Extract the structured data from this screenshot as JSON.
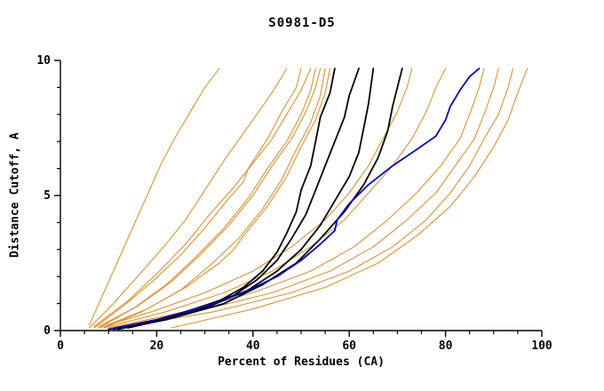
{
  "title": "S0981-D5",
  "chart_data": {
    "type": "line",
    "title": "S0981-D5",
    "xlabel": "Percent of Residues (CA)",
    "ylabel": "Distance Cutoff, A",
    "xlim": [
      0,
      100
    ],
    "ylim": [
      0,
      10
    ],
    "x_major_ticks": [
      0,
      20,
      40,
      60,
      80,
      100
    ],
    "x_minor_step": 5,
    "y_major_ticks": [
      0,
      5,
      10
    ],
    "y_minor_step": 1,
    "grid": false,
    "legend": "none",
    "colors": {
      "orange": "#e2912e",
      "black": "#000000",
      "blue": "#0000c8"
    },
    "line_widths": {
      "orange": 1.1,
      "black": 1.8,
      "blue": 1.8
    },
    "series": [
      {
        "name": "orange-01",
        "color": "orange",
        "points": [
          [
            6,
            0.2
          ],
          [
            9,
            1.4
          ],
          [
            12,
            2.6
          ],
          [
            15,
            3.8
          ],
          [
            18,
            5.0
          ],
          [
            21,
            6.2
          ],
          [
            24,
            7.2
          ],
          [
            27,
            8.1
          ],
          [
            30,
            9.0
          ],
          [
            33,
            9.7
          ]
        ]
      },
      {
        "name": "orange-02",
        "color": "orange",
        "points": [
          [
            6,
            0.1
          ],
          [
            11,
            1.0
          ],
          [
            16,
            2.0
          ],
          [
            21,
            3.0
          ],
          [
            26,
            4.1
          ],
          [
            30,
            5.2
          ],
          [
            34,
            6.3
          ],
          [
            38,
            7.3
          ],
          [
            42,
            8.3
          ],
          [
            45,
            9.1
          ],
          [
            47,
            9.7
          ]
        ]
      },
      {
        "name": "orange-03",
        "color": "orange",
        "points": [
          [
            7,
            0.1
          ],
          [
            13,
            0.9
          ],
          [
            19,
            1.8
          ],
          [
            25,
            2.8
          ],
          [
            30,
            3.8
          ],
          [
            35,
            4.9
          ],
          [
            38,
            5.5
          ],
          [
            39,
            6.0
          ],
          [
            43,
            7.1
          ],
          [
            46,
            8.1
          ],
          [
            49,
            9.0
          ],
          [
            50,
            9.7
          ]
        ]
      },
      {
        "name": "orange-04",
        "color": "orange",
        "points": [
          [
            7,
            0.15
          ],
          [
            14,
            1.1
          ],
          [
            20,
            2.1
          ],
          [
            26,
            3.2
          ],
          [
            31,
            4.3
          ],
          [
            36,
            5.3
          ],
          [
            40,
            6.2
          ],
          [
            44,
            7.1
          ],
          [
            47,
            8.0
          ],
          [
            50,
            8.9
          ],
          [
            52,
            9.7
          ]
        ]
      },
      {
        "name": "orange-05",
        "color": "orange",
        "points": [
          [
            8,
            0.1
          ],
          [
            15,
            0.8
          ],
          [
            22,
            1.7
          ],
          [
            28,
            2.7
          ],
          [
            34,
            3.8
          ],
          [
            39,
            4.9
          ],
          [
            43,
            6.0
          ],
          [
            47,
            7.0
          ],
          [
            50,
            8.0
          ],
          [
            52,
            8.9
          ],
          [
            53,
            9.7
          ]
        ]
      },
      {
        "name": "orange-06",
        "color": "orange",
        "points": [
          [
            8,
            0.15
          ],
          [
            16,
            0.9
          ],
          [
            23,
            1.8
          ],
          [
            29,
            2.8
          ],
          [
            35,
            3.9
          ],
          [
            40,
            5.0
          ],
          [
            44,
            6.1
          ],
          [
            48,
            7.1
          ],
          [
            51,
            8.1
          ],
          [
            53,
            9.0
          ],
          [
            54,
            9.7
          ]
        ]
      },
      {
        "name": "orange-07",
        "color": "orange",
        "points": [
          [
            9,
            0.1
          ],
          [
            17,
            0.7
          ],
          [
            25,
            1.5
          ],
          [
            31,
            2.4
          ],
          [
            37,
            3.4
          ],
          [
            42,
            4.5
          ],
          [
            46,
            5.6
          ],
          [
            49,
            6.7
          ],
          [
            52,
            7.7
          ],
          [
            54,
            8.7
          ],
          [
            55,
            9.7
          ]
        ]
      },
      {
        "name": "orange-08",
        "color": "orange",
        "points": [
          [
            9,
            0.15
          ],
          [
            18,
            0.8
          ],
          [
            26,
            1.6
          ],
          [
            33,
            2.5
          ],
          [
            36,
            3.0
          ],
          [
            38,
            3.5
          ],
          [
            43,
            4.6
          ],
          [
            47,
            5.7
          ],
          [
            50,
            6.8
          ],
          [
            53,
            7.8
          ],
          [
            55,
            8.8
          ],
          [
            56,
            9.7
          ]
        ]
      },
      {
        "name": "orange-09",
        "color": "orange",
        "points": [
          [
            8,
            0.1
          ],
          [
            19,
            0.7
          ],
          [
            30,
            1.4
          ],
          [
            40,
            2.2
          ],
          [
            48,
            3.1
          ],
          [
            55,
            4.1
          ],
          [
            60,
            5.1
          ],
          [
            64,
            6.1
          ],
          [
            67,
            7.1
          ],
          [
            70,
            8.1
          ],
          [
            72,
            9.0
          ],
          [
            73,
            9.7
          ]
        ]
      },
      {
        "name": "orange-10",
        "color": "orange",
        "points": [
          [
            9,
            0.1
          ],
          [
            22,
            0.7
          ],
          [
            34,
            1.4
          ],
          [
            44,
            2.2
          ],
          [
            52,
            3.1
          ],
          [
            59,
            4.1
          ],
          [
            64,
            5.1
          ],
          [
            69,
            6.1
          ],
          [
            73,
            7.1
          ],
          [
            76,
            8.1
          ],
          [
            78,
            9.0
          ],
          [
            80,
            9.7
          ]
        ]
      },
      {
        "name": "orange-11",
        "color": "orange",
        "points": [
          [
            10,
            0.1
          ],
          [
            26,
            0.7
          ],
          [
            40,
            1.4
          ],
          [
            52,
            2.2
          ],
          [
            61,
            3.1
          ],
          [
            68,
            4.1
          ],
          [
            74,
            5.1
          ],
          [
            79,
            6.1
          ],
          [
            83,
            7.1
          ],
          [
            85,
            8.0
          ],
          [
            87,
            9.0
          ],
          [
            88,
            9.7
          ]
        ]
      },
      {
        "name": "orange-12",
        "color": "orange",
        "points": [
          [
            11,
            0.1
          ],
          [
            28,
            0.7
          ],
          [
            44,
            1.4
          ],
          [
            56,
            2.2
          ],
          [
            65,
            3.1
          ],
          [
            72,
            4.1
          ],
          [
            78,
            5.1
          ],
          [
            82,
            6.1
          ],
          [
            86,
            7.1
          ],
          [
            88,
            8.0
          ],
          [
            90,
            9.0
          ],
          [
            91,
            9.7
          ]
        ]
      },
      {
        "name": "orange-13",
        "color": "orange",
        "points": [
          [
            12,
            0.1
          ],
          [
            32,
            0.7
          ],
          [
            48,
            1.4
          ],
          [
            60,
            2.2
          ],
          [
            69,
            3.1
          ],
          [
            76,
            4.1
          ],
          [
            81,
            5.1
          ],
          [
            85,
            6.1
          ],
          [
            88,
            7.1
          ],
          [
            91,
            8.0
          ],
          [
            93,
            9.0
          ],
          [
            94,
            9.7
          ]
        ]
      },
      {
        "name": "orange-14",
        "color": "orange",
        "points": [
          [
            23,
            0.1
          ],
          [
            40,
            0.8
          ],
          [
            55,
            1.6
          ],
          [
            66,
            2.5
          ],
          [
            74,
            3.5
          ],
          [
            81,
            4.6
          ],
          [
            86,
            5.7
          ],
          [
            90,
            6.8
          ],
          [
            93,
            7.8
          ],
          [
            95,
            8.8
          ],
          [
            97,
            9.7
          ]
        ]
      },
      {
        "name": "black-1",
        "color": "black",
        "points": [
          [
            11,
            0.05
          ],
          [
            18,
            0.3
          ],
          [
            26,
            0.7
          ],
          [
            33,
            1.1
          ],
          [
            38,
            1.6
          ],
          [
            42,
            2.2
          ],
          [
            45,
            2.9
          ],
          [
            47,
            3.6
          ],
          [
            49,
            4.4
          ],
          [
            50,
            5.2
          ],
          [
            52,
            6.1
          ],
          [
            53,
            7.0
          ],
          [
            54,
            7.9
          ],
          [
            56,
            8.8
          ],
          [
            57,
            9.7
          ]
        ]
      },
      {
        "name": "black-2",
        "color": "black",
        "points": [
          [
            12,
            0.05
          ],
          [
            20,
            0.35
          ],
          [
            28,
            0.8
          ],
          [
            36,
            1.3
          ],
          [
            41,
            1.9
          ],
          [
            45,
            2.6
          ],
          [
            48,
            3.4
          ],
          [
            51,
            4.3
          ],
          [
            53,
            5.2
          ],
          [
            55,
            6.1
          ],
          [
            57,
            7.0
          ],
          [
            59,
            7.9
          ],
          [
            60,
            8.7
          ],
          [
            62,
            9.7
          ]
        ]
      },
      {
        "name": "black-3",
        "color": "black",
        "points": [
          [
            13,
            0.1
          ],
          [
            22,
            0.4
          ],
          [
            31,
            0.9
          ],
          [
            39,
            1.5
          ],
          [
            45,
            2.2
          ],
          [
            50,
            3.0
          ],
          [
            54,
            3.9
          ],
          [
            57,
            4.8
          ],
          [
            60,
            5.7
          ],
          [
            62,
            6.6
          ],
          [
            63,
            7.5
          ],
          [
            64,
            8.4
          ],
          [
            65,
            9.7
          ]
        ]
      },
      {
        "name": "black-4",
        "color": "black",
        "points": [
          [
            14,
            0.1
          ],
          [
            24,
            0.5
          ],
          [
            34,
            1.0
          ],
          [
            42,
            1.7
          ],
          [
            49,
            2.5
          ],
          [
            54,
            3.4
          ],
          [
            59,
            4.4
          ],
          [
            63,
            5.4
          ],
          [
            66,
            6.4
          ],
          [
            68,
            7.4
          ],
          [
            69,
            8.3
          ],
          [
            70,
            9.0
          ],
          [
            71,
            9.7
          ]
        ]
      },
      {
        "name": "blue-1",
        "color": "blue",
        "points": [
          [
            10,
            0.05
          ],
          [
            20,
            0.4
          ],
          [
            30,
            0.9
          ],
          [
            38,
            1.4
          ],
          [
            45,
            2.0
          ],
          [
            50,
            2.6
          ],
          [
            54,
            3.2
          ],
          [
            57,
            3.7
          ],
          [
            57.5,
            4.1
          ],
          [
            60,
            4.7
          ],
          [
            64,
            5.4
          ],
          [
            69,
            6.1
          ],
          [
            74,
            6.7
          ],
          [
            78,
            7.2
          ],
          [
            80,
            7.8
          ],
          [
            81,
            8.3
          ],
          [
            83,
            8.9
          ],
          [
            85,
            9.4
          ],
          [
            87,
            9.7
          ]
        ]
      }
    ]
  }
}
